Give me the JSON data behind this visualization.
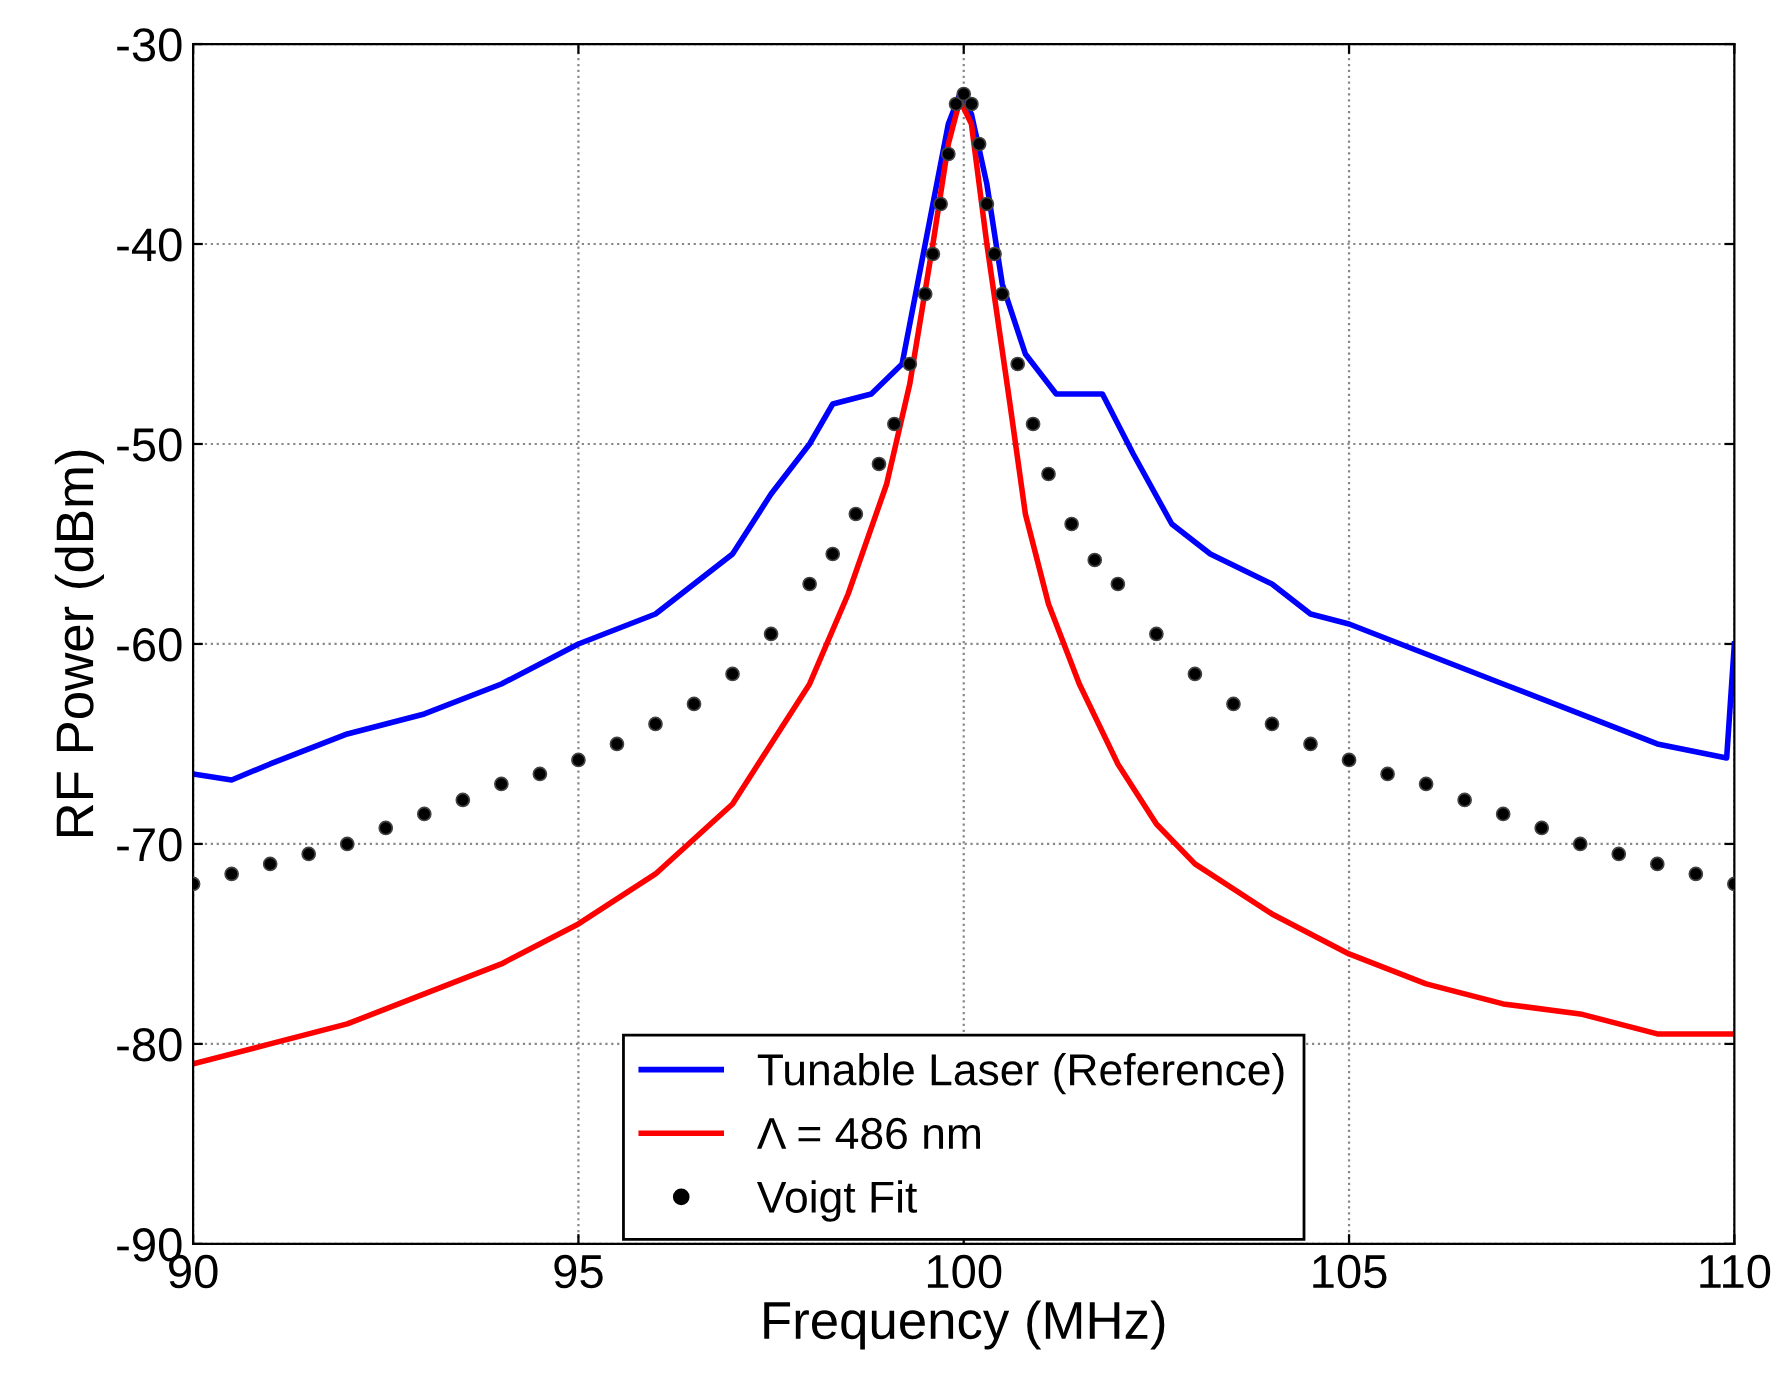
{
  "chart_data": {
    "type": "line",
    "xlabel": "Frequency (MHz)",
    "ylabel": "RF Power (dBm)",
    "xlim": [
      90,
      110
    ],
    "xticks": [
      90,
      95,
      100,
      105,
      110
    ],
    "ylim": [
      -90,
      -30
    ],
    "yticks": [
      -90,
      -80,
      -70,
      -60,
      -50,
      -40,
      -30
    ],
    "grid": true,
    "legend": "bottom",
    "line_style": "solid",
    "series": [
      {
        "name": "Tunable Laser (Reference)",
        "color": "#0000ff",
        "x": [
          90,
          90.5,
          91,
          92,
          93,
          94,
          95,
          96,
          97,
          97.5,
          98,
          98.3,
          98.8,
          99.2,
          99.4,
          99.6,
          99.8,
          99.95,
          100.1,
          100.3,
          100.5,
          100.8,
          101.2,
          101.8,
          102.2,
          102.7,
          103.2,
          104,
          104.5,
          105,
          106,
          107,
          108,
          109,
          109.9,
          110
        ],
        "values": [
          -66.5,
          -66.8,
          -66,
          -64.5,
          -63.5,
          -62,
          -60,
          -58.5,
          -55.5,
          -52.5,
          -50,
          -48,
          -47.5,
          -46,
          -42,
          -38,
          -34,
          -32.5,
          -33.5,
          -37,
          -42,
          -45.5,
          -47.5,
          -47.5,
          -50.5,
          -54,
          -55.5,
          -57,
          -58.5,
          -59,
          -60.5,
          -62,
          -63.5,
          -65,
          -65.7,
          -60
        ]
      },
      {
        "name": "Λ = 486 nm",
        "color": "#ff0000",
        "x": [
          90,
          91,
          92,
          93,
          94,
          95,
          96,
          97,
          97.5,
          98,
          98.5,
          99,
          99.3,
          99.6,
          99.8,
          99.95,
          100.1,
          100.3,
          100.6,
          100.8,
          101.1,
          101.5,
          102,
          102.5,
          103,
          104,
          105,
          106,
          107,
          108,
          109,
          110
        ],
        "values": [
          -81,
          -80,
          -79,
          -77.5,
          -76,
          -74,
          -71.5,
          -68,
          -65,
          -62,
          -57.5,
          -52,
          -47,
          -40,
          -35,
          -32.8,
          -34,
          -40,
          -48,
          -53.5,
          -58,
          -62,
          -66,
          -69,
          -71,
          -73.5,
          -75.5,
          -77,
          -78,
          -78.5,
          -79.5,
          -79.5
        ]
      },
      {
        "name": "Voigt Fit",
        "color": "#000000",
        "type": "scatter",
        "marker": "circle",
        "x": [
          90,
          90.5,
          91,
          91.5,
          92,
          92.5,
          93,
          93.5,
          94,
          94.5,
          95,
          95.5,
          96,
          96.5,
          97,
          97.5,
          98,
          98.3,
          98.6,
          98.9,
          99.1,
          99.3,
          99.5,
          99.6,
          99.7,
          99.8,
          99.9,
          100,
          100.1,
          100.2,
          100.3,
          100.4,
          100.5,
          100.7,
          100.9,
          101.1,
          101.4,
          101.7,
          102,
          102.5,
          103,
          103.5,
          104,
          104.5,
          105,
          105.5,
          106,
          106.5,
          107,
          107.5,
          108,
          108.5,
          109,
          109.5,
          110
        ],
        "values": [
          -72,
          -71.5,
          -71,
          -70.5,
          -70,
          -69.2,
          -68.5,
          -67.8,
          -67,
          -66.5,
          -65.8,
          -65,
          -64,
          -63,
          -61.5,
          -59.5,
          -57,
          -55.5,
          -53.5,
          -51,
          -49,
          -46,
          -42.5,
          -40.5,
          -38,
          -35.5,
          -33,
          -32.5,
          -33,
          -35,
          -38,
          -40.5,
          -42.5,
          -46,
          -49,
          -51.5,
          -54,
          -55.8,
          -57,
          -59.5,
          -61.5,
          -63,
          -64,
          -65,
          -65.8,
          -66.5,
          -67,
          -67.8,
          -68.5,
          -69.2,
          -70,
          -70.5,
          -71,
          -71.5,
          -72
        ]
      }
    ]
  }
}
